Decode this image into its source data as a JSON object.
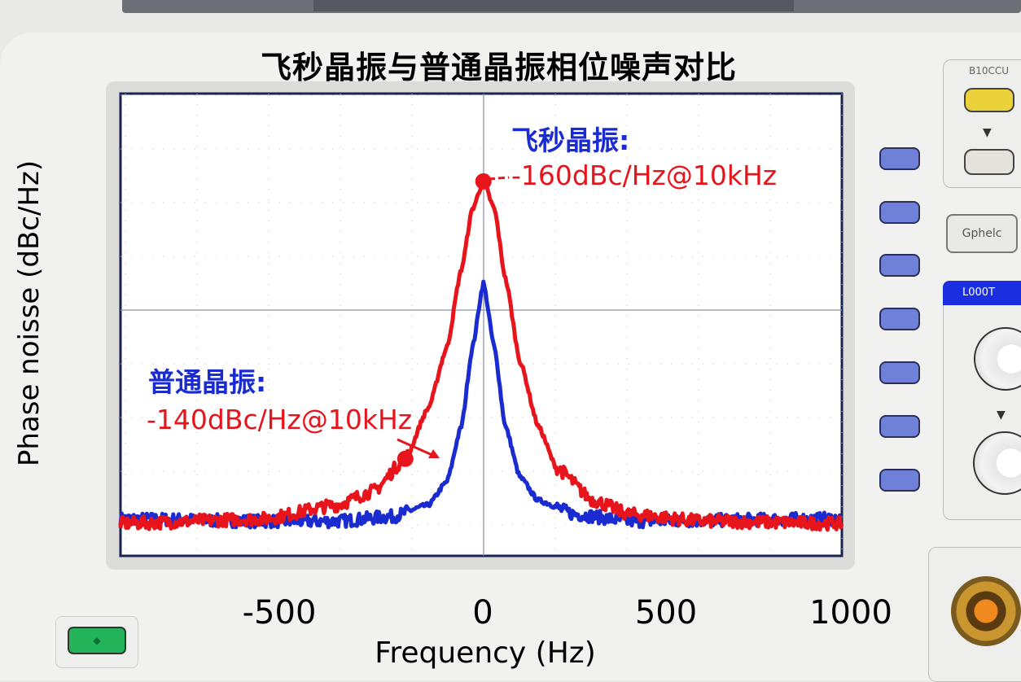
{
  "title": "飞秒晶振与普通晶振相位噪声对比",
  "device": {
    "panel_label_top": "B10CCU",
    "panel_button_label": "Gphelc",
    "panel_header_label": "L000T"
  },
  "colors": {
    "femto": "#e8141c",
    "normal": "#1a2bd0",
    "bezel": "#f1f1ef",
    "soft_button": "#6f80d8"
  },
  "annotations": {
    "femto_name": "飞秒晶振:",
    "femto_value": "-160dBc/Hz@10kHz",
    "normal_name": "普通晶振:",
    "normal_value": "-140dBc/Hz@10kHz"
  },
  "chart_data": {
    "type": "line",
    "title": "飞秒晶振与普通晶振相位噪声对比",
    "xlabel": "Frequency (Hz)",
    "ylabel": "Phase noisse (dBc/Hz)",
    "xlim": [
      -990,
      978
    ],
    "ylim": [
      0,
      100
    ],
    "x_ticks": [
      {
        "value": -500,
        "label": "-500"
      },
      {
        "value": 0,
        "label": "0"
      },
      {
        "value": 500,
        "label": "500"
      },
      {
        "value": 1000,
        "label": "1000"
      }
    ],
    "grid": true,
    "series": [
      {
        "name": "red trace",
        "color": "#e8141c",
        "x": [
          -990,
          -600,
          -400,
          -300,
          -213,
          -150,
          -100,
          -60,
          -30,
          0,
          30,
          60,
          100,
          150,
          200,
          300,
          400,
          600,
          978
        ],
        "y": [
          7,
          8,
          11,
          14,
          21,
          32,
          45,
          62,
          75,
          81,
          75,
          60,
          42,
          28,
          19,
          12,
          9,
          7.5,
          7
        ]
      },
      {
        "name": "blue trace",
        "color": "#1a2bd0",
        "x": [
          -990,
          -600,
          -400,
          -250,
          -150,
          -100,
          -60,
          -30,
          0,
          30,
          60,
          100,
          150,
          250,
          400,
          978
        ],
        "y": [
          8,
          7.5,
          7.5,
          8.5,
          11,
          16,
          28,
          45,
          59,
          45,
          28,
          17,
          12,
          9,
          7.5,
          8
        ]
      }
    ],
    "markers": [
      {
        "series": "red trace",
        "x": 0,
        "y": 81
      },
      {
        "series": "red trace",
        "x": -213,
        "y": 21
      }
    ]
  }
}
